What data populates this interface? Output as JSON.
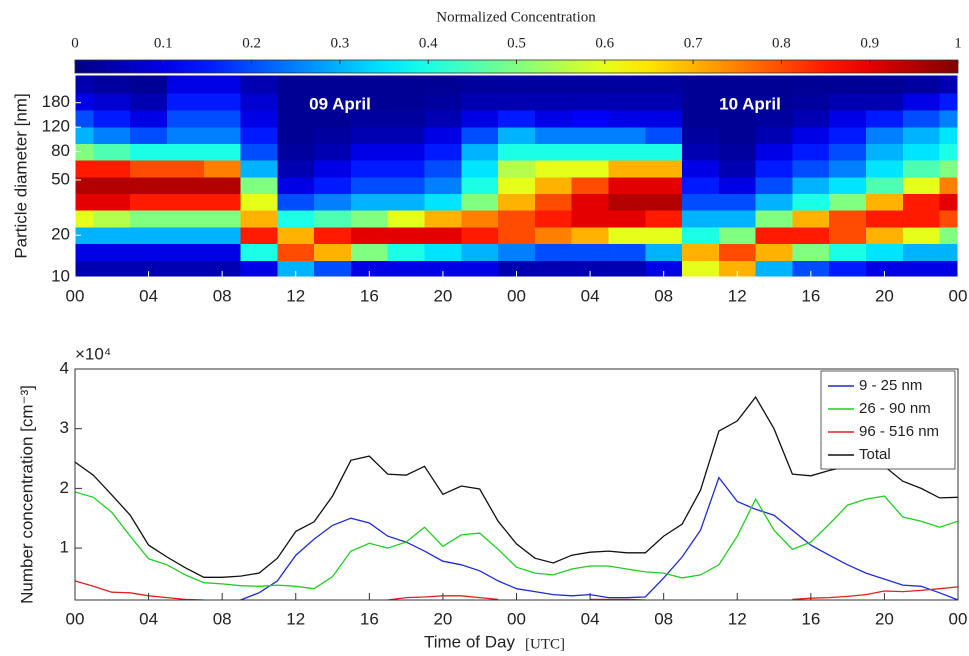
{
  "chart_data": [
    {
      "type": "heatmap",
      "colorbar_label": "Normalized Concentration",
      "colormap": "jet",
      "clim": [
        0,
        1
      ],
      "cticks": [
        0,
        0.1,
        0.2,
        0.3,
        0.4,
        0.5,
        0.6,
        0.7,
        0.8,
        0.9,
        1
      ],
      "y_label": "Particle diameter [nm]",
      "annotations": [
        "09 April",
        "10 April"
      ],
      "log_y": true,
      "xlim": [
        0,
        48
      ],
      "xticks": [
        {
          "value": 0,
          "label": "00"
        },
        {
          "value": 4,
          "label": "04"
        },
        {
          "value": 8,
          "label": "08"
        },
        {
          "value": 12,
          "label": "12"
        },
        {
          "value": 16,
          "label": "16"
        },
        {
          "value": 20,
          "label": "20"
        },
        {
          "value": 24,
          "label": "00"
        },
        {
          "value": 28,
          "label": "04"
        },
        {
          "value": 32,
          "label": "08"
        },
        {
          "value": 36,
          "label": "12"
        },
        {
          "value": 40,
          "label": "16"
        },
        {
          "value": 44,
          "label": "20"
        },
        {
          "value": 48,
          "label": "00"
        }
      ],
      "ylim": [
        10,
        285
      ],
      "yticks": [
        10,
        20,
        50,
        80,
        120,
        180
      ],
      "x": [
        0,
        2,
        4,
        6,
        8,
        10,
        12,
        14,
        16,
        18,
        20,
        22,
        24,
        26,
        28,
        30,
        32,
        34,
        36,
        38,
        40,
        42,
        44,
        46,
        48
      ],
      "y": [
        11.5,
        15.2,
        20,
        26.4,
        34.8,
        45.9,
        60.6,
        80,
        105,
        139,
        184,
        243
      ],
      "z": [
        [
          0.05,
          0.1,
          0.3,
          0.6,
          0.9,
          0.95,
          0.85,
          0.5,
          0.3,
          0.2,
          0.1,
          0.05
        ],
        [
          0.05,
          0.1,
          0.3,
          0.55,
          0.9,
          0.95,
          0.85,
          0.45,
          0.25,
          0.15,
          0.08,
          0.03
        ],
        [
          0.05,
          0.1,
          0.3,
          0.5,
          0.85,
          0.95,
          0.8,
          0.4,
          0.2,
          0.1,
          0.05,
          0.02
        ],
        [
          0.05,
          0.1,
          0.3,
          0.5,
          0.85,
          0.95,
          0.8,
          0.4,
          0.25,
          0.2,
          0.15,
          0.1
        ],
        [
          0.05,
          0.1,
          0.3,
          0.5,
          0.85,
          0.95,
          0.75,
          0.4,
          0.25,
          0.2,
          0.15,
          0.1
        ],
        [
          0.1,
          0.4,
          0.85,
          0.7,
          0.6,
          0.5,
          0.3,
          0.2,
          0.15,
          0.1,
          0.08,
          0.05
        ],
        [
          0.3,
          0.8,
          0.7,
          0.4,
          0.2,
          0.1,
          0.05,
          0.03,
          0.02,
          0.02,
          0.02,
          0.02
        ],
        [
          0.2,
          0.7,
          0.85,
          0.45,
          0.25,
          0.15,
          0.1,
          0.05,
          0.03,
          0.02,
          0.02,
          0.02
        ],
        [
          0.1,
          0.5,
          0.9,
          0.5,
          0.3,
          0.2,
          0.15,
          0.1,
          0.05,
          0.03,
          0.02,
          0.02
        ],
        [
          0.1,
          0.4,
          0.9,
          0.6,
          0.3,
          0.2,
          0.15,
          0.1,
          0.05,
          0.03,
          0.02,
          0.02
        ],
        [
          0.1,
          0.35,
          0.9,
          0.7,
          0.35,
          0.25,
          0.2,
          0.15,
          0.1,
          0.05,
          0.03,
          0.02
        ],
        [
          0.1,
          0.3,
          0.85,
          0.75,
          0.5,
          0.4,
          0.35,
          0.3,
          0.2,
          0.1,
          0.05,
          0.03
        ],
        [
          0.05,
          0.25,
          0.8,
          0.8,
          0.7,
          0.6,
          0.55,
          0.4,
          0.3,
          0.15,
          0.05,
          0.03
        ],
        [
          0.05,
          0.2,
          0.75,
          0.85,
          0.8,
          0.7,
          0.6,
          0.4,
          0.25,
          0.1,
          0.05,
          0.03
        ],
        [
          0.05,
          0.2,
          0.7,
          0.9,
          0.9,
          0.8,
          0.6,
          0.4,
          0.25,
          0.12,
          0.05,
          0.03
        ],
        [
          0.05,
          0.2,
          0.6,
          0.9,
          0.95,
          0.9,
          0.7,
          0.4,
          0.25,
          0.1,
          0.05,
          0.03
        ],
        [
          0.1,
          0.3,
          0.6,
          0.85,
          0.95,
          0.9,
          0.7,
          0.4,
          0.2,
          0.1,
          0.05,
          0.03
        ],
        [
          0.6,
          0.7,
          0.4,
          0.3,
          0.2,
          0.15,
          0.1,
          0.05,
          0.03,
          0.02,
          0.02,
          0.02
        ],
        [
          0.7,
          0.8,
          0.5,
          0.3,
          0.2,
          0.1,
          0.05,
          0.03,
          0.02,
          0.02,
          0.02,
          0.02
        ],
        [
          0.3,
          0.7,
          0.85,
          0.5,
          0.3,
          0.2,
          0.15,
          0.1,
          0.05,
          0.03,
          0.02,
          0.02
        ],
        [
          0.2,
          0.5,
          0.85,
          0.7,
          0.4,
          0.3,
          0.2,
          0.15,
          0.1,
          0.05,
          0.03,
          0.02
        ],
        [
          0.15,
          0.4,
          0.8,
          0.8,
          0.5,
          0.35,
          0.25,
          0.2,
          0.15,
          0.1,
          0.05,
          0.02
        ],
        [
          0.1,
          0.35,
          0.7,
          0.85,
          0.7,
          0.45,
          0.35,
          0.3,
          0.25,
          0.15,
          0.05,
          0.02
        ],
        [
          0.1,
          0.3,
          0.6,
          0.85,
          0.85,
          0.6,
          0.45,
          0.35,
          0.3,
          0.2,
          0.1,
          0.03
        ],
        [
          0.1,
          0.3,
          0.5,
          0.8,
          0.9,
          0.75,
          0.5,
          0.4,
          0.35,
          0.25,
          0.15,
          0.05
        ]
      ]
    },
    {
      "type": "line",
      "y_label": "Number concentration [cm⁻³]",
      "y_multiplier": "×10⁴",
      "x_label": "Time of Day",
      "x_label_unit": "[UTC]",
      "legend": "upper right",
      "xlim": [
        0,
        48
      ],
      "xticks": [
        {
          "value": 0,
          "label": "00"
        },
        {
          "value": 4,
          "label": "04"
        },
        {
          "value": 8,
          "label": "08"
        },
        {
          "value": 12,
          "label": "12"
        },
        {
          "value": 16,
          "label": "16"
        },
        {
          "value": 20,
          "label": "20"
        },
        {
          "value": 24,
          "label": "00"
        },
        {
          "value": 28,
          "label": "04"
        },
        {
          "value": 32,
          "label": "08"
        },
        {
          "value": 36,
          "label": "12"
        },
        {
          "value": 40,
          "label": "16"
        },
        {
          "value": 44,
          "label": "20"
        },
        {
          "value": 48,
          "label": "00"
        }
      ],
      "ylim": [
        0.13,
        4
      ],
      "yticks": [
        1,
        2,
        3,
        4
      ],
      "x": [
        0,
        1,
        2,
        3,
        4,
        5,
        6,
        7,
        8,
        9,
        10,
        11,
        12,
        13,
        14,
        15,
        16,
        17,
        18,
        19,
        20,
        21,
        22,
        23,
        24,
        25,
        26,
        27,
        28,
        29,
        30,
        31,
        32,
        33,
        34,
        35,
        36,
        37,
        38,
        39,
        40,
        41,
        42,
        43,
        44,
        45,
        46,
        47,
        48
      ],
      "series": [
        {
          "name": "9 - 25 nm",
          "color": "#1f2ccf",
          "values": [
            null,
            null,
            null,
            null,
            null,
            null,
            null,
            null,
            null,
            0.13,
            0.25,
            0.45,
            0.88,
            1.15,
            1.38,
            1.5,
            1.42,
            1.2,
            1.1,
            0.95,
            0.78,
            0.72,
            0.62,
            0.45,
            0.32,
            0.27,
            0.22,
            0.2,
            0.22,
            0.17,
            0.17,
            0.18,
            0.5,
            0.85,
            1.3,
            2.18,
            1.78,
            1.65,
            1.55,
            1.3,
            1.05,
            0.88,
            0.72,
            0.58,
            0.48,
            0.38,
            0.36,
            0.25,
            0.13
          ]
        },
        {
          "name": "26 - 90 nm",
          "color": "#22cc22",
          "values": [
            1.94,
            1.85,
            1.6,
            1.2,
            0.82,
            0.72,
            0.55,
            0.42,
            0.4,
            0.37,
            0.36,
            0.38,
            0.36,
            0.32,
            0.52,
            0.95,
            1.08,
            1.0,
            1.1,
            1.35,
            1.03,
            1.22,
            1.25,
            0.98,
            0.68,
            0.58,
            0.55,
            0.65,
            0.7,
            0.7,
            0.65,
            0.6,
            0.58,
            0.5,
            0.55,
            0.72,
            1.2,
            1.82,
            1.3,
            0.98,
            1.1,
            1.4,
            1.72,
            1.82,
            1.87,
            1.52,
            1.45,
            1.35,
            1.45
          ]
        },
        {
          "name": "96 - 516 nm",
          "color": "#dd2222",
          "values": [
            0.45,
            0.36,
            0.26,
            0.25,
            0.2,
            0.17,
            0.14,
            0.13,
            null,
            null,
            null,
            null,
            null,
            null,
            null,
            null,
            null,
            0.13,
            0.17,
            0.18,
            0.2,
            0.2,
            0.17,
            0.14,
            null,
            null,
            null,
            null,
            0.14,
            0.14,
            0.14,
            0.13,
            null,
            null,
            null,
            null,
            null,
            null,
            null,
            0.14,
            0.16,
            0.17,
            0.19,
            0.22,
            0.28,
            0.27,
            0.29,
            0.32,
            0.35
          ]
        },
        {
          "name": "Total",
          "color": "#111111",
          "values": [
            2.44,
            2.22,
            1.89,
            1.55,
            1.05,
            0.85,
            0.67,
            0.51,
            0.51,
            0.53,
            0.58,
            0.83,
            1.28,
            1.44,
            1.87,
            2.47,
            2.54,
            2.24,
            2.22,
            2.37,
            1.9,
            2.04,
            1.99,
            1.45,
            1.07,
            0.83,
            0.75,
            0.88,
            0.93,
            0.95,
            0.92,
            0.92,
            1.2,
            1.4,
            1.97,
            2.96,
            3.13,
            3.53,
            3.0,
            2.24,
            2.21,
            2.3,
            2.37,
            2.37,
            2.37,
            2.12,
            2.0,
            1.84,
            1.85
          ]
        }
      ]
    }
  ]
}
